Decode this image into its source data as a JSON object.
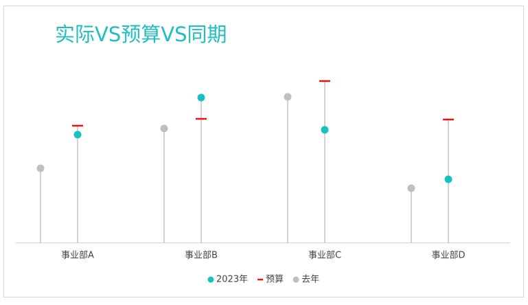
{
  "chart_data": {
    "type": "lollipop",
    "title": "实际VS预算VS同期",
    "categories": [
      "事业部A",
      "事业部B",
      "事业部C",
      "事业部D"
    ],
    "series": [
      {
        "name": "2023年",
        "color": "#17c1c1",
        "marker": "circle",
        "values": [
          157,
          211,
          164,
          92
        ]
      },
      {
        "name": "预算",
        "color": "#ee1111",
        "marker": "dash",
        "values": [
          170,
          180,
          235,
          179
        ]
      },
      {
        "name": "去年",
        "color": "#bfbfbf",
        "marker": "circle",
        "values": [
          108,
          166,
          212,
          79
        ]
      }
    ],
    "ylim": [
      0,
      250
    ],
    "legend": "bottom"
  }
}
